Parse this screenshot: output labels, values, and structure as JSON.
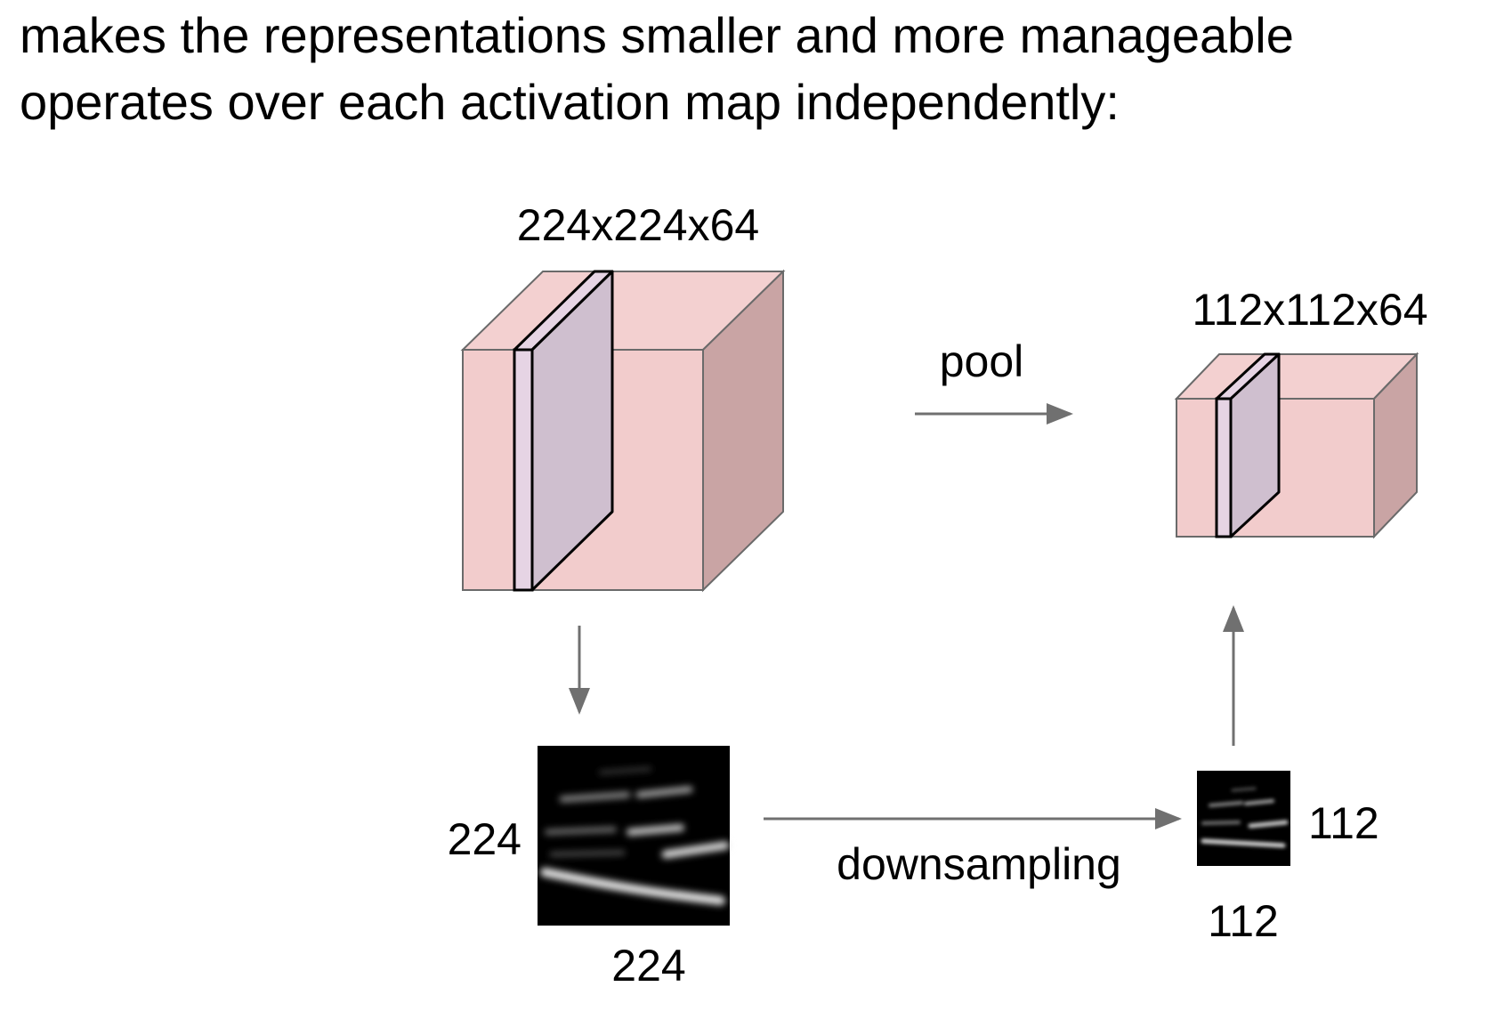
{
  "text": {
    "line_1": "makes the representations smaller and more manageable",
    "line_2": "operates over each activation map independently:"
  },
  "diagram": {
    "input_volume": {
      "label": "224x224x64"
    },
    "output_volume": {
      "label": "112x112x64"
    },
    "pool_label": "pool",
    "downsampling_label": "downsampling",
    "input_map": {
      "height_label": "224",
      "width_label": "224"
    },
    "output_map": {
      "height_label": "112",
      "width_label": "112"
    }
  },
  "colors": {
    "cube_front": "#f2cccc",
    "cube_top": "#f3d0d0",
    "cube_side": "#c9a4a4",
    "slice_face": "#cfbfcf",
    "slice_edge": "#e6d4e4",
    "arrow": "#707070",
    "outline": "#6a6a6a"
  }
}
